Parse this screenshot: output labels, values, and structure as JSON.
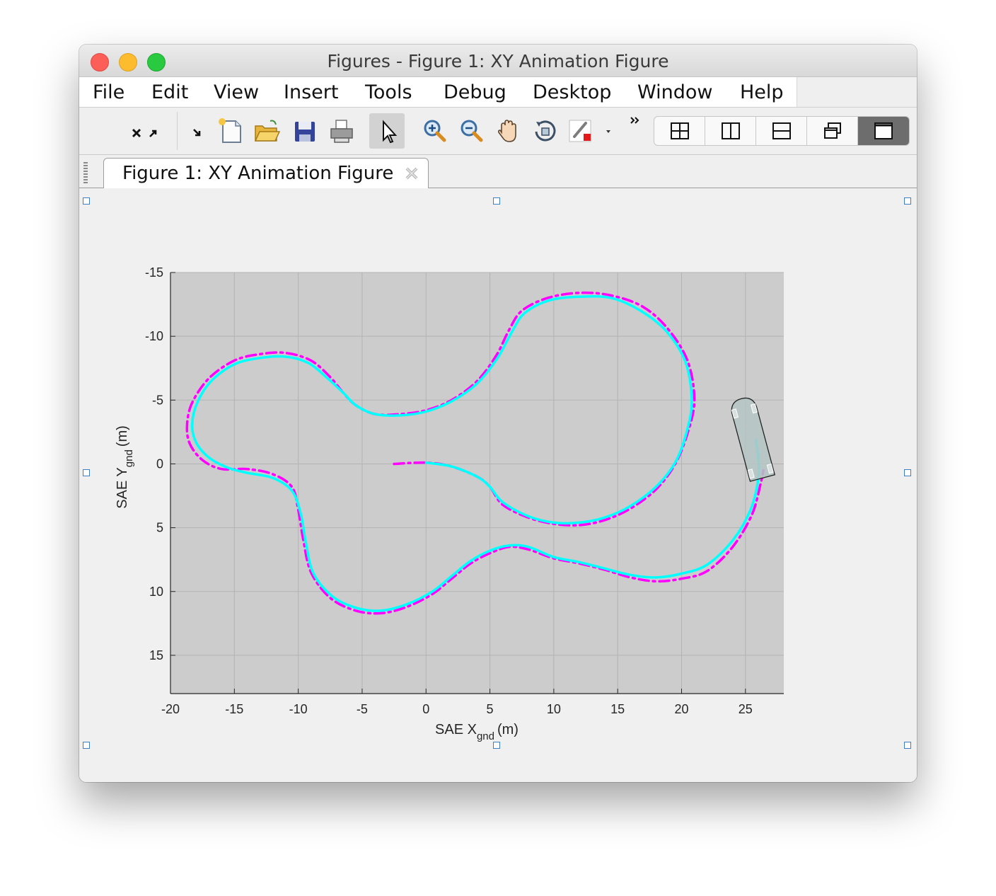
{
  "window": {
    "title": "Figures - Figure 1: XY Animation Figure"
  },
  "menu": [
    "File",
    "Edit",
    "View",
    "Insert",
    "Tools",
    "Debug",
    "Desktop",
    "Window",
    "Help"
  ],
  "toolbar": {
    "items": [
      "undock-icon",
      "dock-icon",
      "new-figure-icon",
      "open-file-icon",
      "save-icon",
      "print-icon",
      "pointer-icon",
      "zoom-in-icon",
      "zoom-out-icon",
      "pan-icon",
      "rotate-3d-icon",
      "brush-icon",
      "brush-dropdown-icon",
      "more-tools-icon"
    ],
    "layouts": [
      "tile-2x2-icon",
      "tile-columns-icon",
      "tile-rows-icon",
      "float-icon",
      "maximize-icon"
    ],
    "selected_layout": "maximize-icon"
  },
  "tab": {
    "label": "Figure 1: XY Animation Figure"
  },
  "chart_data": {
    "type": "line",
    "title": "",
    "xlabel": "SAE X",
    "xlabel_sub": "gnd",
    "xlabel_unit": "(m)",
    "ylabel": "SAE Y",
    "ylabel_sub": "gnd",
    "ylabel_unit": "(m)",
    "xlim": [
      -20,
      28
    ],
    "ylim": [
      18,
      -15
    ],
    "y_reversed": true,
    "xticks": [
      -20,
      -15,
      -10,
      -5,
      0,
      5,
      10,
      15,
      20,
      25
    ],
    "yticks": [
      -15,
      -10,
      -5,
      0,
      5,
      10,
      15
    ],
    "grid": true,
    "background": "#cccccc",
    "series": [
      {
        "color": "#ff00ff",
        "style": "dash-dot",
        "points": [
          [
            -2.5,
            0
          ],
          [
            0,
            -0.1
          ],
          [
            2,
            0.2
          ],
          [
            4,
            1
          ],
          [
            5,
            1.8
          ],
          [
            6,
            3.2
          ],
          [
            8,
            4.2
          ],
          [
            10,
            4.7
          ],
          [
            12,
            4.8
          ],
          [
            14,
            4.4
          ],
          [
            16,
            3.5
          ],
          [
            18,
            2
          ],
          [
            19.5,
            0
          ],
          [
            20.5,
            -2.5
          ],
          [
            21,
            -5
          ],
          [
            20.5,
            -8
          ],
          [
            19,
            -10.5
          ],
          [
            17,
            -12.3
          ],
          [
            14.5,
            -13.2
          ],
          [
            12,
            -13.4
          ],
          [
            9.5,
            -13
          ],
          [
            7.5,
            -12
          ],
          [
            6.5,
            -10.5
          ],
          [
            5.5,
            -8.5
          ],
          [
            4,
            -6.5
          ],
          [
            2,
            -5
          ],
          [
            0,
            -4.2
          ],
          [
            -2,
            -3.9
          ],
          [
            -4,
            -3.9
          ],
          [
            -5.5,
            -4.6
          ],
          [
            -6.5,
            -5.6
          ],
          [
            -7.5,
            -6.8
          ],
          [
            -9,
            -8.1
          ],
          [
            -11,
            -8.7
          ],
          [
            -13,
            -8.6
          ],
          [
            -15,
            -8.1
          ],
          [
            -17,
            -6.7
          ],
          [
            -18.3,
            -4.8
          ],
          [
            -18.7,
            -3.1
          ],
          [
            -18.5,
            -1.6
          ],
          [
            -17.5,
            -0.3
          ],
          [
            -16,
            0.4
          ],
          [
            -14,
            0.4
          ],
          [
            -12,
            0.8
          ],
          [
            -10.5,
            1.8
          ],
          [
            -10,
            3.6
          ],
          [
            -9.6,
            6
          ],
          [
            -9,
            8.5
          ],
          [
            -7.5,
            10.5
          ],
          [
            -5.5,
            11.5
          ],
          [
            -3.5,
            11.7
          ],
          [
            -1.5,
            11.2
          ],
          [
            0.5,
            10.2
          ],
          [
            2,
            9
          ],
          [
            3.5,
            7.8
          ],
          [
            5,
            7
          ],
          [
            6.5,
            6.5
          ],
          [
            8,
            6.7
          ],
          [
            10,
            7.4
          ],
          [
            12,
            7.8
          ],
          [
            14,
            8.3
          ],
          [
            16,
            8.9
          ],
          [
            18,
            9.2
          ],
          [
            20,
            9
          ],
          [
            22,
            8.4
          ],
          [
            24,
            6.5
          ],
          [
            25.5,
            4
          ],
          [
            26.2,
            1.5
          ],
          [
            26.4,
            0.5
          ]
        ]
      },
      {
        "color": "#00ffff",
        "style": "solid",
        "points": [
          [
            0,
            -0.1
          ],
          [
            2,
            0.2
          ],
          [
            4,
            1
          ],
          [
            5,
            1.8
          ],
          [
            6,
            3
          ],
          [
            8,
            4.1
          ],
          [
            10,
            4.6
          ],
          [
            12,
            4.6
          ],
          [
            14,
            4.2
          ],
          [
            16,
            3.3
          ],
          [
            18,
            1.8
          ],
          [
            19.5,
            -0.1
          ],
          [
            20.4,
            -2.5
          ],
          [
            20.8,
            -5
          ],
          [
            20.3,
            -8
          ],
          [
            18.8,
            -10.4
          ],
          [
            16.8,
            -12
          ],
          [
            14.5,
            -13
          ],
          [
            12,
            -13.1
          ],
          [
            9.6,
            -12.8
          ],
          [
            7.7,
            -11.8
          ],
          [
            6.7,
            -10.3
          ],
          [
            5.6,
            -8.3
          ],
          [
            4,
            -6.3
          ],
          [
            2,
            -4.9
          ],
          [
            0,
            -4.1
          ],
          [
            -2,
            -3.8
          ],
          [
            -4,
            -3.9
          ],
          [
            -5.5,
            -4.6
          ],
          [
            -6.5,
            -5.6
          ],
          [
            -7.7,
            -6.7
          ],
          [
            -9.2,
            -7.9
          ],
          [
            -11,
            -8.4
          ],
          [
            -13,
            -8.3
          ],
          [
            -15,
            -7.8
          ],
          [
            -16.8,
            -6.5
          ],
          [
            -17.9,
            -4.8
          ],
          [
            -18.3,
            -3.1
          ],
          [
            -18,
            -1.7
          ],
          [
            -17,
            -0.5
          ],
          [
            -15.5,
            0.3
          ],
          [
            -14,
            0.7
          ],
          [
            -12,
            1.1
          ],
          [
            -10.5,
            2.1
          ],
          [
            -9.8,
            3.9
          ],
          [
            -9.4,
            6.2
          ],
          [
            -8.8,
            8.6
          ],
          [
            -7.3,
            10.4
          ],
          [
            -5.4,
            11.3
          ],
          [
            -3.5,
            11.5
          ],
          [
            -1.5,
            11
          ],
          [
            0.5,
            10
          ],
          [
            2,
            8.8
          ],
          [
            3.5,
            7.6
          ],
          [
            5,
            6.8
          ],
          [
            6.5,
            6.4
          ],
          [
            8,
            6.5
          ],
          [
            10,
            7.3
          ],
          [
            12,
            7.7
          ],
          [
            14,
            8.2
          ],
          [
            16,
            8.7
          ],
          [
            18,
            8.9
          ],
          [
            20,
            8.6
          ],
          [
            22,
            7.9
          ],
          [
            24,
            6
          ],
          [
            25.4,
            3.6
          ],
          [
            26,
            1.2
          ],
          [
            26,
            -0.5
          ],
          [
            25.8,
            -1.9
          ]
        ]
      }
    ],
    "vehicle": {
      "center": [
        25.5,
        -2
      ],
      "heading_deg": -105,
      "color": "#b5c4c4"
    }
  }
}
